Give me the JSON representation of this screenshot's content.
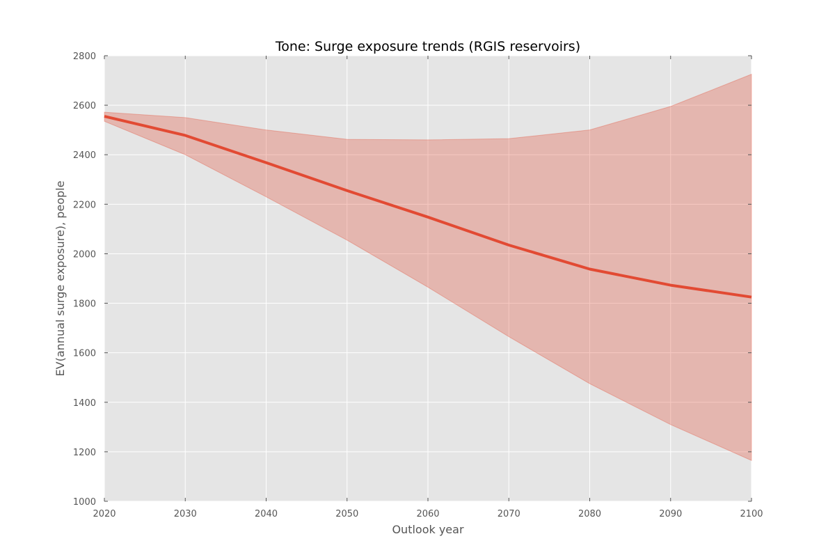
{
  "chart_data": {
    "type": "line",
    "title": "Tone: Surge exposure trends (RGIS reservoirs)",
    "xlabel": "Outlook year",
    "ylabel": "EV(annual surge exposure), people",
    "x": [
      2020,
      2030,
      2040,
      2050,
      2060,
      2070,
      2080,
      2090,
      2100
    ],
    "xlim": [
      2020,
      2100
    ],
    "ylim": [
      1000,
      2800
    ],
    "xticks": [
      2020,
      2030,
      2040,
      2050,
      2060,
      2070,
      2080,
      2090,
      2100
    ],
    "yticks": [
      1000,
      1200,
      1400,
      1600,
      1800,
      2000,
      2200,
      2400,
      2600,
      2800
    ],
    "grid": true,
    "series": [
      {
        "values": [
          2555,
          2478,
          2368,
          2255,
          2148,
          2035,
          1938,
          1873,
          1825
        ],
        "color": "#e24a33"
      }
    ],
    "band": {
      "lower": [
        2535,
        2400,
        2230,
        2055,
        1865,
        1665,
        1475,
        1310,
        1165
      ],
      "upper": [
        2572,
        2550,
        2500,
        2462,
        2460,
        2465,
        2500,
        2595,
        2725
      ],
      "color": "#e24a33",
      "opacity": 0.3
    },
    "colors": {
      "plot_background": "#e5e5e5",
      "grid": "#ffffff",
      "text": "#555555"
    }
  }
}
